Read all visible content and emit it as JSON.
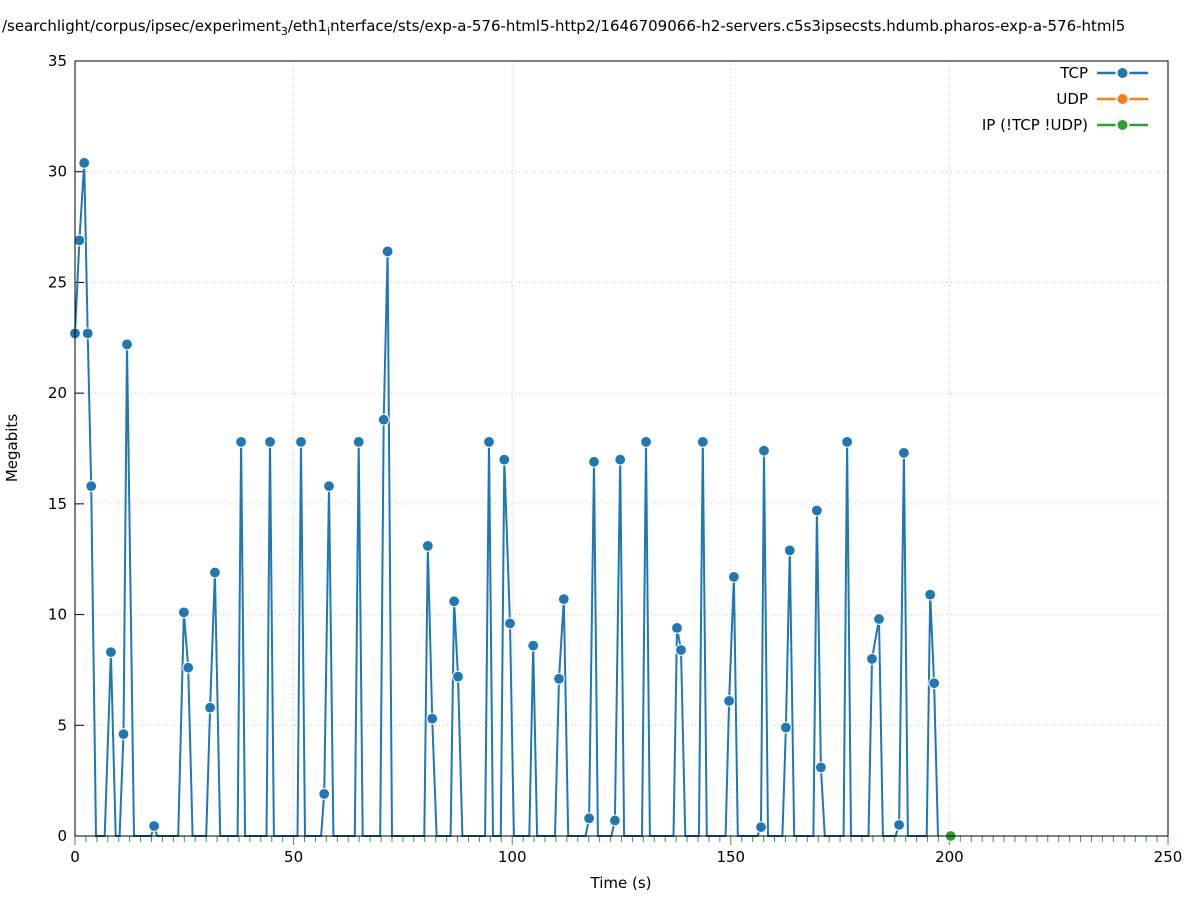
{
  "title": {
    "plain": "/searchlight/corpus/ipsec/experiment_3/eth1_interface/sts/exp-a-576-html5-http2/1646709066-h2-servers.c5s3ipsecsts.hdumb.pharos-exp-a-576-html5",
    "segments": [
      {
        "text": "/searchlight/corpus/ipsec/experiment",
        "sub": false
      },
      {
        "text": "3",
        "sub": true
      },
      {
        "text": "/eth1",
        "sub": false
      },
      {
        "text": "i",
        "sub": true
      },
      {
        "text": "nterface/sts/exp-a-576-html5-http2/1646709066-h2-servers.c5s3ipsecsts.hdumb.pharos-exp-a-576-html5",
        "sub": false
      }
    ]
  },
  "chart_data": {
    "type": "line",
    "title": "/searchlight/corpus/ipsec/experiment_3/eth1_interface/sts/exp-a-576-html5-http2/1646709066-h2-servers.c5s3ipsecsts.hdumb.pharos-exp-a-576-html5",
    "xlabel": "Time (s)",
    "ylabel": "Megabits",
    "xlim": [
      0,
      250
    ],
    "ylim": [
      0,
      35
    ],
    "xticks_major": [
      0,
      50,
      100,
      150,
      200,
      250
    ],
    "xtick_minor_step": 2.5,
    "yticks": [
      0,
      5,
      10,
      15,
      20,
      25,
      30,
      35
    ],
    "grid": true,
    "legend_position": "top-right-inside",
    "series": [
      {
        "name": "TCP",
        "color": "#1f77b4",
        "style": "linespoints",
        "points": [
          [
            0,
            22.7,
            1
          ],
          [
            1,
            26.9,
            1
          ],
          [
            2.1,
            30.4,
            1
          ],
          [
            2.9,
            22.7,
            1
          ],
          [
            3.7,
            15.8,
            1
          ],
          [
            4.8,
            0,
            0
          ],
          [
            6.8,
            0,
            0
          ],
          [
            8.2,
            8.3,
            1
          ],
          [
            9.3,
            0,
            0
          ],
          [
            10.2,
            0,
            0
          ],
          [
            11.1,
            4.6,
            1
          ],
          [
            11.9,
            22.2,
            1
          ],
          [
            13.5,
            0,
            0
          ],
          [
            17.4,
            0,
            0
          ],
          [
            18.1,
            0.45,
            1
          ],
          [
            18.8,
            0,
            0
          ],
          [
            23.6,
            0,
            0
          ],
          [
            24.9,
            10.1,
            1
          ],
          [
            25.9,
            7.6,
            1
          ],
          [
            26.9,
            0,
            0
          ],
          [
            30,
            0,
            0
          ],
          [
            30.9,
            5.8,
            1
          ],
          [
            32,
            11.9,
            1
          ],
          [
            33.2,
            0,
            0
          ],
          [
            37.2,
            0,
            0
          ],
          [
            38,
            17.8,
            1
          ],
          [
            38.9,
            0,
            0
          ],
          [
            43.8,
            0,
            0
          ],
          [
            44.6,
            17.8,
            1
          ],
          [
            45.5,
            0,
            0
          ],
          [
            50.9,
            0,
            0
          ],
          [
            51.7,
            17.8,
            1
          ],
          [
            52.6,
            0,
            0
          ],
          [
            56.3,
            0,
            0
          ],
          [
            57,
            1.9,
            1
          ],
          [
            58.1,
            15.8,
            1
          ],
          [
            59.1,
            0,
            0
          ],
          [
            64,
            0,
            0
          ],
          [
            64.9,
            17.8,
            1
          ],
          [
            65.8,
            0,
            0
          ],
          [
            69.8,
            0,
            0
          ],
          [
            70.6,
            18.8,
            1
          ],
          [
            71.5,
            26.4,
            1
          ],
          [
            72.5,
            0,
            0
          ],
          [
            79.9,
            0,
            0
          ],
          [
            80.7,
            13.1,
            1
          ],
          [
            81.7,
            5.3,
            1
          ],
          [
            82.7,
            0,
            0
          ],
          [
            85.9,
            0,
            0
          ],
          [
            86.7,
            10.6,
            1
          ],
          [
            87.6,
            7.2,
            1
          ],
          [
            88.6,
            0,
            0
          ],
          [
            93.8,
            0,
            0
          ],
          [
            94.7,
            17.8,
            1
          ],
          [
            95.6,
            0,
            0
          ],
          [
            97.4,
            0,
            0
          ],
          [
            98.2,
            17.0,
            1
          ],
          [
            99.5,
            9.6,
            1
          ],
          [
            100.4,
            0,
            0
          ],
          [
            103.9,
            0,
            0
          ],
          [
            104.8,
            8.6,
            1
          ],
          [
            105.7,
            0,
            0
          ],
          [
            109.8,
            0,
            0
          ],
          [
            110.7,
            7.1,
            1
          ],
          [
            111.8,
            10.7,
            1
          ],
          [
            112.8,
            0,
            0
          ],
          [
            116.8,
            0,
            0
          ],
          [
            117.6,
            0.8,
            1
          ],
          [
            118.7,
            16.9,
            1
          ],
          [
            119.6,
            0,
            0
          ],
          [
            122.7,
            0,
            0
          ],
          [
            123.5,
            0.7,
            1
          ],
          [
            124.7,
            17.0,
            1
          ],
          [
            125.6,
            0,
            0
          ],
          [
            129.7,
            0,
            0
          ],
          [
            130.6,
            17.8,
            1
          ],
          [
            131.5,
            0,
            0
          ],
          [
            136.9,
            0,
            0
          ],
          [
            137.7,
            9.4,
            1
          ],
          [
            138.6,
            8.4,
            1
          ],
          [
            139.6,
            0,
            0
          ],
          [
            142.7,
            0,
            0
          ],
          [
            143.6,
            17.8,
            1
          ],
          [
            144.5,
            0,
            0
          ],
          [
            148.8,
            0,
            0
          ],
          [
            149.6,
            6.1,
            1
          ],
          [
            150.7,
            11.7,
            1
          ],
          [
            151.6,
            0,
            0
          ],
          [
            156.1,
            0,
            0
          ],
          [
            156.9,
            0.4,
            1
          ],
          [
            157.6,
            17.4,
            1
          ],
          [
            158.5,
            0,
            0
          ],
          [
            161.8,
            0,
            0
          ],
          [
            162.6,
            4.9,
            1
          ],
          [
            163.5,
            12.9,
            1
          ],
          [
            164.5,
            0,
            0
          ],
          [
            168.9,
            0,
            0
          ],
          [
            169.7,
            14.7,
            1
          ],
          [
            170.6,
            3.1,
            1
          ],
          [
            171.5,
            0,
            0
          ],
          [
            175.8,
            0,
            0
          ],
          [
            176.6,
            17.8,
            1
          ],
          [
            177.5,
            0,
            0
          ],
          [
            181.5,
            0,
            0
          ],
          [
            182.3,
            8.0,
            1
          ],
          [
            183.9,
            9.8,
            1
          ],
          [
            184.8,
            0,
            0
          ],
          [
            187.7,
            0,
            0
          ],
          [
            188.5,
            0.5,
            1
          ],
          [
            189.6,
            17.3,
            1
          ],
          [
            190.5,
            0,
            0
          ],
          [
            194.8,
            0,
            0
          ],
          [
            195.6,
            10.9,
            1
          ],
          [
            196.5,
            6.9,
            1
          ],
          [
            197.4,
            0,
            0
          ]
        ]
      },
      {
        "name": "UDP",
        "color": "#ff7f0e",
        "style": "linespoints",
        "points": []
      },
      {
        "name": "IP (!TCP  !UDP)",
        "color": "#2ca02c",
        "style": "linespoints",
        "points": [
          [
            200.3,
            0,
            1
          ]
        ]
      }
    ]
  },
  "colors": {
    "tcp": "#1f77b4",
    "udp": "#ff7f0e",
    "ip": "#2ca02c",
    "grid": "#c4c4c4",
    "border": "#000000",
    "xtick": "#35a035",
    "text": "#000000"
  }
}
